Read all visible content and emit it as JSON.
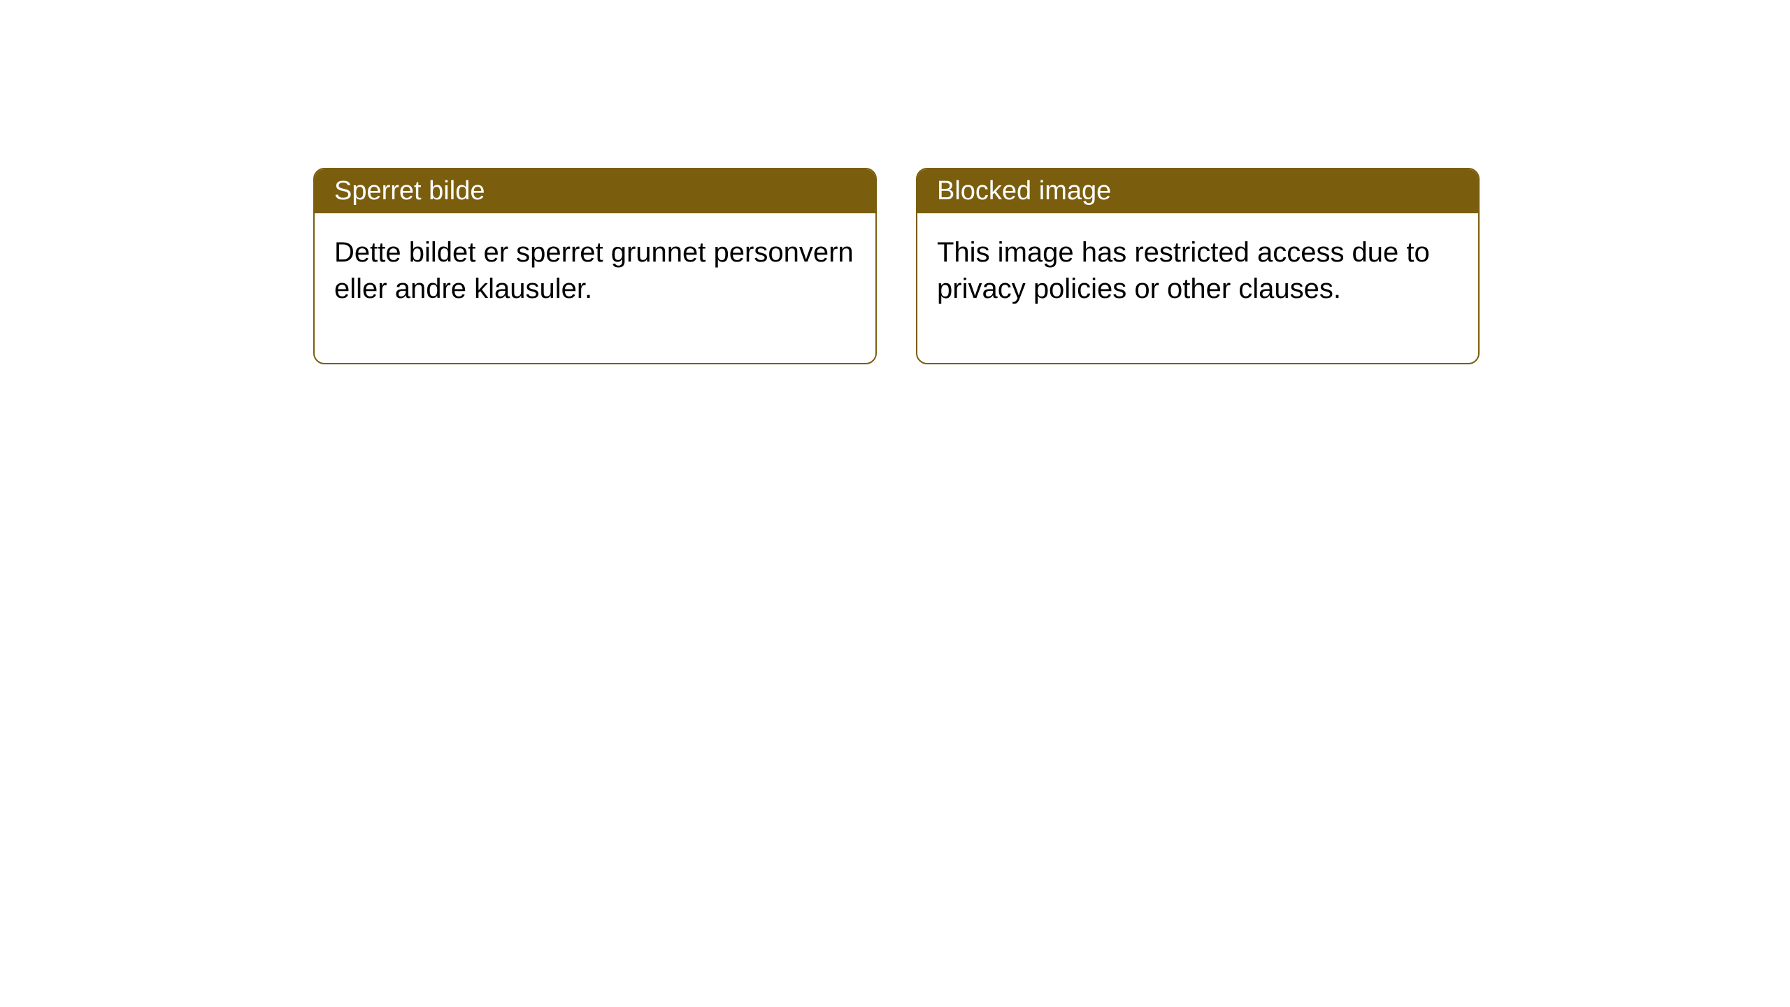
{
  "cards": [
    {
      "title": "Sperret bilde",
      "body": "Dette bildet er sperret grunnet personvern eller andre klausuler."
    },
    {
      "title": "Blocked image",
      "body": "This image has restricted access due to privacy policies or other clauses."
    }
  ],
  "style": {
    "header_bg": "#7a5e0e",
    "header_text_color": "#ffffff",
    "border_color": "#7a5e0e",
    "body_bg": "#ffffff",
    "body_text_color": "#000000",
    "border_radius": 16,
    "title_fontsize": 38,
    "body_fontsize": 40
  }
}
